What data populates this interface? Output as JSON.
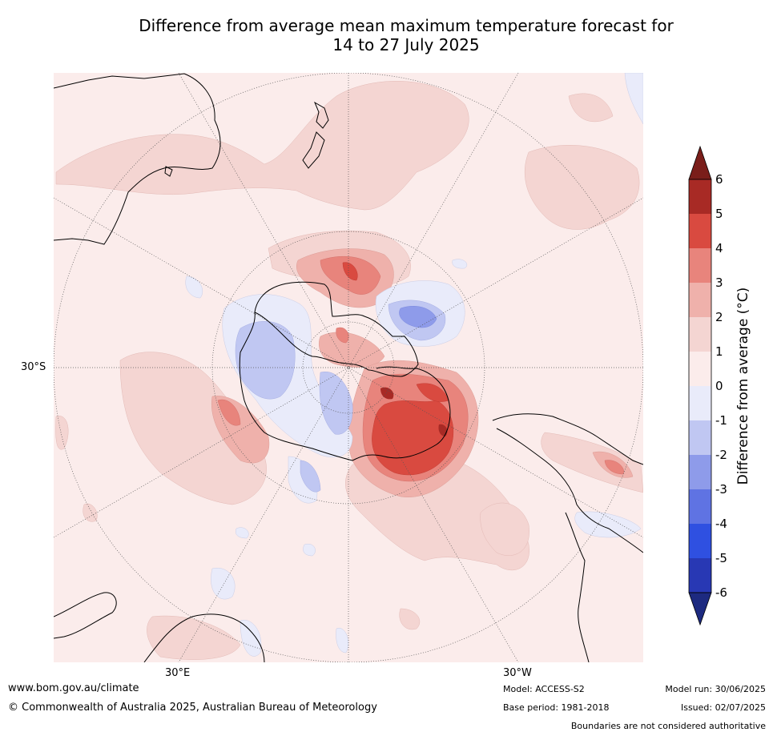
{
  "title": {
    "line1": "Difference from average mean maximum temperature forecast for",
    "line2": "14 to 27 July 2025"
  },
  "map": {
    "projection": "south-polar-stereographic",
    "lat_label": "30°S",
    "lon_labels": [
      "30°E",
      "30°W"
    ]
  },
  "colorbar": {
    "label": "Difference from average ($^\\circ$C)",
    "label_display": "Difference from average (°C)",
    "ticks": [
      "6",
      "5",
      "4",
      "3",
      "2",
      "1",
      "0",
      "-1",
      "-2",
      "-3",
      "-4",
      "-5",
      "-6"
    ],
    "colors": {
      "above_6": "#7a1e1a",
      "5_to_6": "#a82a25",
      "4_to_5": "#d94a40",
      "3_to_4": "#e8847c",
      "2_to_3": "#efb1ab",
      "1_to_2": "#f4d5d2",
      "0_to_1": "#fbeceb",
      "m1_to_0": "#e9ebfa",
      "m2_to_m1": "#c0c7f2",
      "m3_to_m2": "#8e9bea",
      "m4_to_m3": "#5f73e3",
      "m5_to_m4": "#2f50e1",
      "m6_to_m5": "#2838b4",
      "below_m6": "#1d2a80"
    }
  },
  "footer": {
    "website": "www.bom.gov.au/climate",
    "copyright": "© Commonwealth of Australia 2025, Australian Bureau of Meteorology",
    "model": "Model: ACCESS-S2",
    "base_period": "Base period: 1981-2018",
    "model_run": "Model run: 30/06/2025",
    "issued": "Issued: 02/07/2025",
    "disclaimer": "Boundaries are not considered authoritative"
  }
}
